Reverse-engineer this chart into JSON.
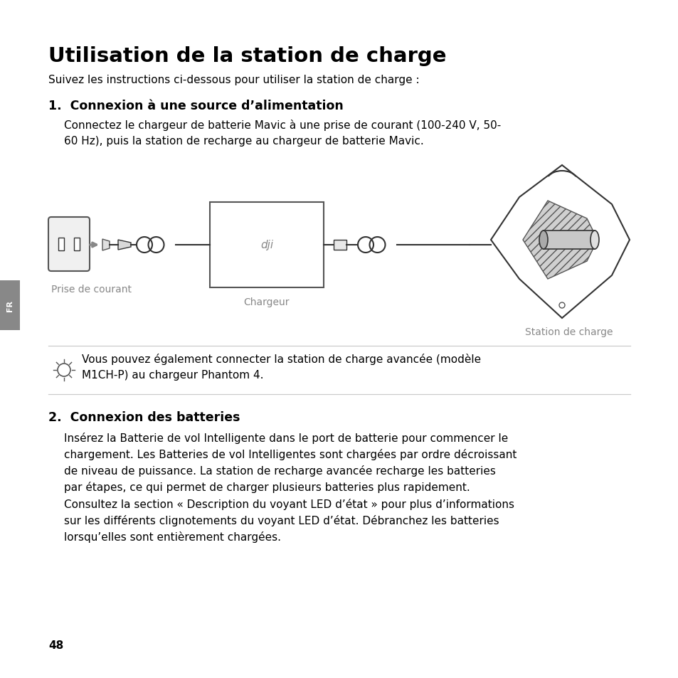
{
  "title": "Utilisation de la station de charge",
  "subtitle": "Suivez les instructions ci-dessous pour utiliser la station de charge :",
  "section1_heading": "1.  Connexion à une source d’alimentation",
  "section1_text": "Connectez le chargeur de batterie Mavic à une prise de courant (100-240 V, 50-\n60 Hz), puis la station de recharge au chargeur de batterie Mavic.",
  "label_prise": "Prise de courant",
  "label_chargeur": "Chargeur",
  "label_station": "Station de charge",
  "tip_text": "Vous pouvez également connecter la station de charge avancée (modèle\nM1CH-P) au chargeur Phantom 4.",
  "section2_heading": "2.  Connexion des batteries",
  "section2_text": "Insérez la Batterie de vol Intelligente dans le port de batterie pour commencer le\nchargement. Les Batteries de vol Intelligentes sont chargées par ordre décroissant\nde niveau de puissance. La station de recharge avancée recharge les batteries\npar étapes, ce qui permet de charger plusieurs batteries plus rapidement.\nConsultez la section « Description du voyant LED d’état » pour plus d’informations\nsur les différents clignotements du voyant LED d’état. Débranchez les batteries\nlorsqu’elles sont entièrement chargées.",
  "page_number": "48",
  "bg_color": "#ffffff",
  "text_color": "#000000",
  "gray_text_color": "#888888",
  "tab_color": "#888888",
  "line_color": "#cccccc",
  "diagram_color": "#333333"
}
